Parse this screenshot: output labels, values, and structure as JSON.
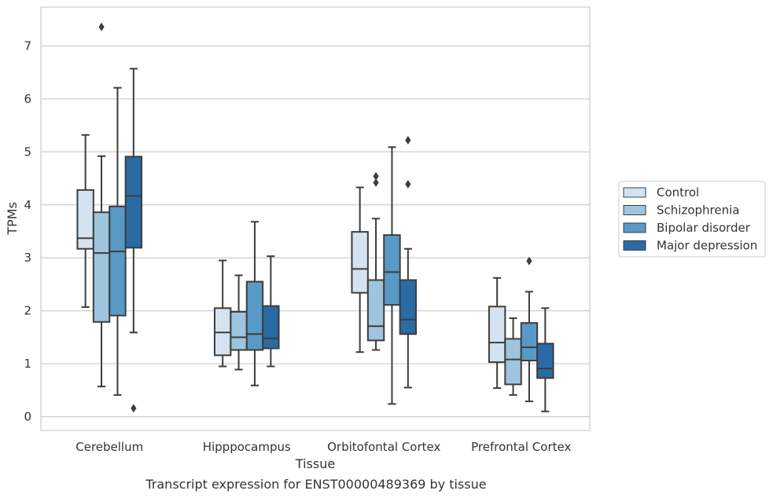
{
  "chart_data": {
    "type": "box",
    "title": "",
    "caption": "Transcript expression for ENST00000489369 by tissue",
    "xlabel": "Tissue",
    "ylabel": "TPMs",
    "ylim": [
      -0.25,
      7.75
    ],
    "yticks": [
      0,
      1,
      2,
      3,
      4,
      5,
      6,
      7
    ],
    "grid": "horizontal",
    "legend_position": "right",
    "categories": [
      "Cerebellum",
      "Hipppocampus",
      "Orbitofontal Cortex",
      "Prefrontal Cortex"
    ],
    "series": [
      {
        "name": "Control",
        "color": "#d3e3f1",
        "boxes": [
          {
            "whislo": 2.07,
            "q1": 3.17,
            "med": 3.37,
            "q3": 4.28,
            "whishi": 5.32,
            "fliers": []
          },
          {
            "whislo": 0.95,
            "q1": 1.16,
            "med": 1.59,
            "q3": 2.05,
            "whishi": 2.95,
            "fliers": []
          },
          {
            "whislo": 1.22,
            "q1": 2.34,
            "med": 2.79,
            "q3": 3.49,
            "whishi": 4.33,
            "fliers": []
          },
          {
            "whislo": 0.54,
            "q1": 1.03,
            "med": 1.4,
            "q3": 2.08,
            "whishi": 2.62,
            "fliers": []
          }
        ]
      },
      {
        "name": "Schizophrenia",
        "color": "#9fc5de",
        "boxes": [
          {
            "whislo": 0.57,
            "q1": 1.79,
            "med": 3.09,
            "q3": 3.86,
            "whishi": 4.92,
            "fliers": [
              7.36
            ]
          },
          {
            "whislo": 0.89,
            "q1": 1.26,
            "med": 1.5,
            "q3": 1.98,
            "whishi": 2.67,
            "fliers": []
          },
          {
            "whislo": 1.26,
            "q1": 1.44,
            "med": 1.71,
            "q3": 2.58,
            "whishi": 3.74,
            "fliers": [
              4.42,
              4.54
            ]
          },
          {
            "whislo": 0.41,
            "q1": 0.61,
            "med": 1.08,
            "q3": 1.47,
            "whishi": 1.86,
            "fliers": []
          }
        ]
      },
      {
        "name": "Bipolar disorder",
        "color": "#5899c6",
        "boxes": [
          {
            "whislo": 0.41,
            "q1": 1.91,
            "med": 3.12,
            "q3": 3.97,
            "whishi": 6.21,
            "fliers": []
          },
          {
            "whislo": 0.59,
            "q1": 1.26,
            "med": 1.56,
            "q3": 2.55,
            "whishi": 3.68,
            "fliers": []
          },
          {
            "whislo": 0.24,
            "q1": 2.11,
            "med": 2.73,
            "q3": 3.43,
            "whishi": 5.09,
            "fliers": []
          },
          {
            "whislo": 0.29,
            "q1": 1.06,
            "med": 1.31,
            "q3": 1.77,
            "whishi": 2.36,
            "fliers": [
              2.94
            ]
          }
        ]
      },
      {
        "name": "Major depression",
        "color": "#2b6ba5",
        "boxes": [
          {
            "whislo": 1.59,
            "q1": 3.19,
            "med": 4.17,
            "q3": 4.91,
            "whishi": 6.57,
            "fliers": [
              0.16
            ]
          },
          {
            "whislo": 0.95,
            "q1": 1.29,
            "med": 1.48,
            "q3": 2.09,
            "whishi": 3.03,
            "fliers": []
          },
          {
            "whislo": 0.55,
            "q1": 1.56,
            "med": 1.83,
            "q3": 2.58,
            "whishi": 3.17,
            "fliers": [
              4.39,
              5.22
            ]
          },
          {
            "whislo": 0.1,
            "q1": 0.73,
            "med": 0.91,
            "q3": 1.38,
            "whishi": 2.05,
            "fliers": []
          }
        ]
      }
    ]
  }
}
